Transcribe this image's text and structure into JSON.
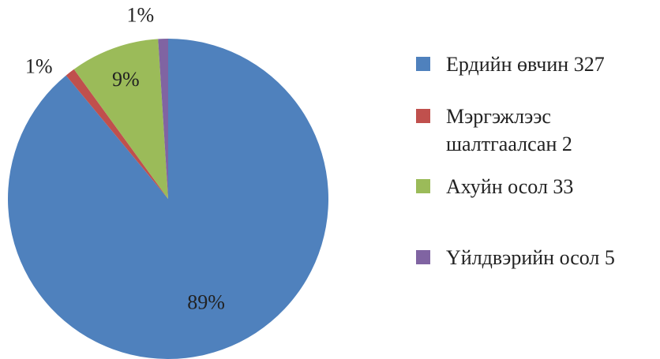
{
  "chart_data": {
    "type": "pie",
    "series": [
      {
        "name": "Ердийн өвчин 327",
        "color": "#4f81bd",
        "values": [
          89
        ],
        "value_labels": [
          "89%"
        ]
      },
      {
        "name": "Мэргэжлээс шалтгаалсан  2",
        "color": "#c0504d",
        "values": [
          1
        ],
        "value_labels": [
          "1%"
        ]
      },
      {
        "name": "Ахуйн осол 33",
        "color": "#9bbb59",
        "values": [
          9
        ],
        "value_labels": [
          "9%"
        ]
      },
      {
        "name": "Үйлдвэрийн осол 5",
        "color": "#8064a2",
        "values": [
          1
        ],
        "value_labels": [
          "1%"
        ]
      }
    ]
  }
}
